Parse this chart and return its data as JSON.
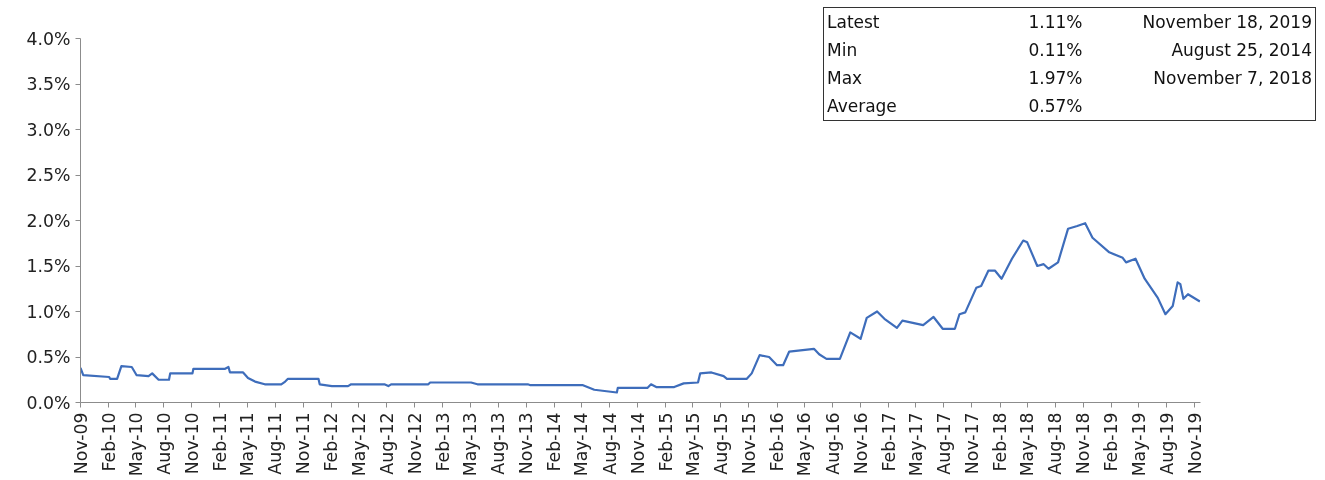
{
  "chart_data": {
    "type": "line",
    "color": "#3e6dbb",
    "line_style": "solid",
    "marker": "none",
    "grid": false,
    "x": [
      "2009-11-01",
      "2009-11-10",
      "2010-02-03",
      "2010-02-06",
      "2010-03-01",
      "2010-03-15",
      "2010-04-18",
      "2010-05-04",
      "2010-06-12",
      "2010-06-24",
      "2010-07-15",
      "2010-08-18",
      "2010-08-22",
      "2010-11-03",
      "2010-11-06",
      "2011-02-18",
      "2011-03-01",
      "2011-03-06",
      "2011-04-18",
      "2011-05-04",
      "2011-05-27",
      "2011-06-28",
      "2011-08-21",
      "2011-09-03",
      "2011-09-12",
      "2011-12-21",
      "2011-12-25",
      "2012-02-03",
      "2012-03-27",
      "2012-04-06",
      "2012-07-24",
      "2012-08-06",
      "2012-08-15",
      "2012-12-15",
      "2012-12-21",
      "2013-05-04",
      "2013-05-25",
      "2013-11-06",
      "2013-11-15",
      "2014-05-06",
      "2014-06-12",
      "2014-08-25",
      "2014-08-28",
      "2014-12-03",
      "2014-12-15",
      "2015-01-01",
      "2015-03-01",
      "2015-04-01",
      "2015-05-18",
      "2015-05-25",
      "2015-07-01",
      "2015-08-10",
      "2015-08-21",
      "2015-10-25",
      "2015-11-10",
      "2015-12-06",
      "2016-01-06",
      "2016-02-01",
      "2016-02-21",
      "2016-03-12",
      "2016-06-01",
      "2016-06-18",
      "2016-07-12",
      "2016-08-25",
      "2016-09-28",
      "2016-11-01",
      "2016-11-21",
      "2016-12-25",
      "2017-01-18",
      "2017-02-28",
      "2017-03-18",
      "2017-05-25",
      "2017-06-28",
      "2017-07-28",
      "2017-09-06",
      "2017-09-21",
      "2017-10-10",
      "2017-11-15",
      "2017-12-01",
      "2017-12-25",
      "2018-01-15",
      "2018-02-06",
      "2018-03-12",
      "2018-04-18",
      "2018-05-01",
      "2018-06-03",
      "2018-06-24",
      "2018-07-10",
      "2018-08-10",
      "2018-09-12",
      "2018-10-12",
      "2018-11-07",
      "2018-12-01",
      "2019-01-25",
      "2019-03-10",
      "2019-03-21",
      "2019-04-21",
      "2019-05-21",
      "2019-07-03",
      "2019-07-28",
      "2019-08-21",
      "2019-09-06",
      "2019-09-15",
      "2019-09-25",
      "2019-10-10",
      "2019-11-18"
    ],
    "values": [
      0.38,
      0.3,
      0.28,
      0.26,
      0.26,
      0.4,
      0.39,
      0.3,
      0.29,
      0.32,
      0.25,
      0.25,
      0.32,
      0.32,
      0.37,
      0.37,
      0.39,
      0.33,
      0.33,
      0.27,
      0.23,
      0.2,
      0.2,
      0.23,
      0.26,
      0.26,
      0.2,
      0.18,
      0.18,
      0.2,
      0.2,
      0.18,
      0.2,
      0.2,
      0.22,
      0.22,
      0.2,
      0.2,
      0.19,
      0.19,
      0.14,
      0.11,
      0.16,
      0.16,
      0.2,
      0.17,
      0.17,
      0.21,
      0.22,
      0.32,
      0.33,
      0.29,
      0.26,
      0.26,
      0.32,
      0.52,
      0.5,
      0.41,
      0.41,
      0.56,
      0.59,
      0.53,
      0.48,
      0.48,
      0.77,
      0.7,
      0.93,
      1.0,
      0.92,
      0.82,
      0.9,
      0.85,
      0.94,
      0.81,
      0.81,
      0.97,
      0.99,
      1.26,
      1.28,
      1.45,
      1.45,
      1.36,
      1.58,
      1.78,
      1.76,
      1.5,
      1.52,
      1.47,
      1.54,
      1.91,
      1.94,
      1.97,
      1.81,
      1.65,
      1.59,
      1.54,
      1.58,
      1.36,
      1.15,
      0.97,
      1.06,
      1.32,
      1.3,
      1.14,
      1.19,
      1.11
    ],
    "xlim": [
      "2009-11-01",
      "2019-11-20"
    ],
    "xticks": [
      {
        "value": "2009-11-01",
        "label": "Nov-09"
      },
      {
        "value": "2010-02-01",
        "label": "Feb-10"
      },
      {
        "value": "2010-05-01",
        "label": "May-10"
      },
      {
        "value": "2010-08-01",
        "label": "Aug-10"
      },
      {
        "value": "2010-11-01",
        "label": "Nov-10"
      },
      {
        "value": "2011-02-01",
        "label": "Feb-11"
      },
      {
        "value": "2011-05-01",
        "label": "May-11"
      },
      {
        "value": "2011-08-01",
        "label": "Aug-11"
      },
      {
        "value": "2011-11-01",
        "label": "Nov-11"
      },
      {
        "value": "2012-02-01",
        "label": "Feb-12"
      },
      {
        "value": "2012-05-01",
        "label": "May-12"
      },
      {
        "value": "2012-08-01",
        "label": "Aug-12"
      },
      {
        "value": "2012-11-01",
        "label": "Nov-12"
      },
      {
        "value": "2013-02-01",
        "label": "Feb-13"
      },
      {
        "value": "2013-05-01",
        "label": "May-13"
      },
      {
        "value": "2013-08-01",
        "label": "Aug-13"
      },
      {
        "value": "2013-11-01",
        "label": "Nov-13"
      },
      {
        "value": "2014-02-01",
        "label": "Feb-14"
      },
      {
        "value": "2014-05-01",
        "label": "May-14"
      },
      {
        "value": "2014-08-01",
        "label": "Aug-14"
      },
      {
        "value": "2014-11-01",
        "label": "Nov-14"
      },
      {
        "value": "2015-02-01",
        "label": "Feb-15"
      },
      {
        "value": "2015-05-01",
        "label": "May-15"
      },
      {
        "value": "2015-08-01",
        "label": "Aug-15"
      },
      {
        "value": "2015-11-01",
        "label": "Nov-15"
      },
      {
        "value": "2016-02-01",
        "label": "Feb-16"
      },
      {
        "value": "2016-05-01",
        "label": "May-16"
      },
      {
        "value": "2016-08-01",
        "label": "Aug-16"
      },
      {
        "value": "2016-11-01",
        "label": "Nov-16"
      },
      {
        "value": "2017-02-01",
        "label": "Feb-17"
      },
      {
        "value": "2017-05-01",
        "label": "May-17"
      },
      {
        "value": "2017-08-01",
        "label": "Aug-17"
      },
      {
        "value": "2017-11-01",
        "label": "Nov-17"
      },
      {
        "value": "2018-02-01",
        "label": "Feb-18"
      },
      {
        "value": "2018-05-01",
        "label": "May-18"
      },
      {
        "value": "2018-08-01",
        "label": "Aug-18"
      },
      {
        "value": "2018-11-01",
        "label": "Nov-18"
      },
      {
        "value": "2019-02-01",
        "label": "Feb-19"
      },
      {
        "value": "2019-05-01",
        "label": "May-19"
      },
      {
        "value": "2019-08-01",
        "label": "Aug-19"
      },
      {
        "value": "2019-11-01",
        "label": "Nov-19"
      }
    ],
    "ylim": [
      0,
      4.0
    ],
    "yticks": [
      {
        "value": 0,
        "label": "0.0%"
      },
      {
        "value": 0.5,
        "label": "0.5%"
      },
      {
        "value": 1.0,
        "label": "1.0%"
      },
      {
        "value": 1.5,
        "label": "1.5%"
      },
      {
        "value": 2.0,
        "label": "2.0%"
      },
      {
        "value": 2.5,
        "label": "2.5%"
      },
      {
        "value": 3.0,
        "label": "3.0%"
      },
      {
        "value": 3.5,
        "label": "3.5%"
      },
      {
        "value": 4.0,
        "label": "4.0%"
      }
    ],
    "annotations": [
      "Latest",
      "1.11%",
      "November 18, 2019",
      "Min",
      "0.11%",
      "August 25, 2014",
      "Max",
      "1.97%",
      "November 7, 2018",
      "Average",
      "0.57%"
    ]
  }
}
